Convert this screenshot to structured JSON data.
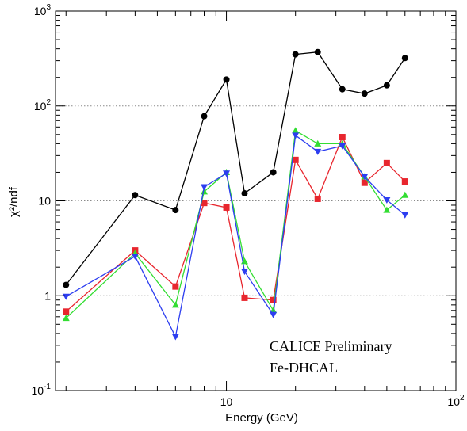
{
  "chart_data": {
    "type": "line",
    "title": "",
    "xlabel": "Energy (GeV)",
    "ylabel": "χ²/ndf",
    "x_scale": "log",
    "y_scale": "log",
    "xlim": [
      1.8,
      100
    ],
    "ylim": [
      0.1,
      1000
    ],
    "x_ticks": [
      {
        "value": 10,
        "base": "10",
        "exp": ""
      },
      {
        "value": 100,
        "base": "10",
        "exp": "2"
      }
    ],
    "y_ticks": [
      {
        "value": 0.1,
        "base": "10",
        "exp": "-1"
      },
      {
        "value": 1,
        "base": "1",
        "exp": ""
      },
      {
        "value": 10,
        "base": "10",
        "exp": ""
      },
      {
        "value": 100,
        "base": "10",
        "exp": "2"
      },
      {
        "value": 1000,
        "base": "10",
        "exp": "3"
      }
    ],
    "gridlines_y": [
      1,
      10,
      100
    ],
    "annotations": [
      "CALICE Preliminary",
      "Fe-DHCAL"
    ],
    "x": [
      2,
      4,
      6,
      8,
      10,
      12,
      16,
      20,
      25,
      32,
      40,
      50,
      60
    ],
    "series": [
      {
        "color": "#000000",
        "marker": "circle",
        "values": [
          1.3,
          11.5,
          8.0,
          78,
          190,
          12,
          20,
          350,
          370,
          150,
          135,
          165,
          320
        ]
      },
      {
        "color": "#e8262e",
        "marker": "square",
        "values": [
          0.68,
          3.0,
          1.25,
          9.5,
          8.5,
          0.95,
          0.9,
          27,
          10.5,
          47,
          15.5,
          25,
          16
        ]
      },
      {
        "color": "#32dd32",
        "marker": "triangle-up",
        "values": [
          0.58,
          2.8,
          0.8,
          12.5,
          20,
          2.3,
          0.7,
          55,
          40,
          40,
          18,
          8,
          11.5
        ]
      },
      {
        "color": "#2d3ef0",
        "marker": "triangle-down",
        "values": [
          0.98,
          2.6,
          0.37,
          14,
          19.5,
          1.8,
          0.63,
          49,
          33,
          38,
          18,
          10.2,
          7.1
        ]
      }
    ]
  }
}
